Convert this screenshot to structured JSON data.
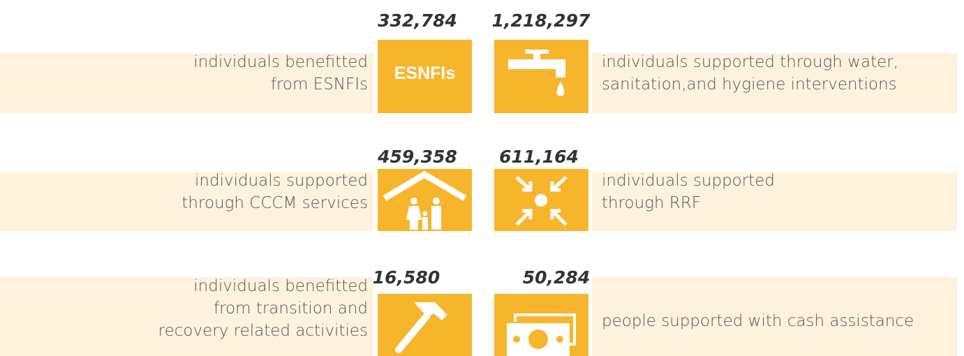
{
  "rows": [
    {
      "left": {
        "number": "332,784",
        "lines": [
          "individuals benefitted",
          "from ESNFIs"
        ],
        "icon_text": "ESNFIs"
      },
      "right": {
        "number": "1,218,297",
        "lines": [
          "individuals supported through water,",
          "sanitation,and hygiene interventions"
        ]
      }
    },
    {
      "left": {
        "number": "459,358",
        "lines": [
          "individuals supported",
          "through CCCM services"
        ]
      },
      "right": {
        "number": "611,164",
        "lines": [
          "individuals supported",
          "through RRF"
        ]
      }
    },
    {
      "left": {
        "number": "16,580",
        "lines": [
          "individuals benefitted",
          "from transition and",
          "recovery related activities"
        ]
      },
      "right": {
        "number": "50,284",
        "lines": [
          "people supported with cash assistance"
        ]
      }
    }
  ]
}
